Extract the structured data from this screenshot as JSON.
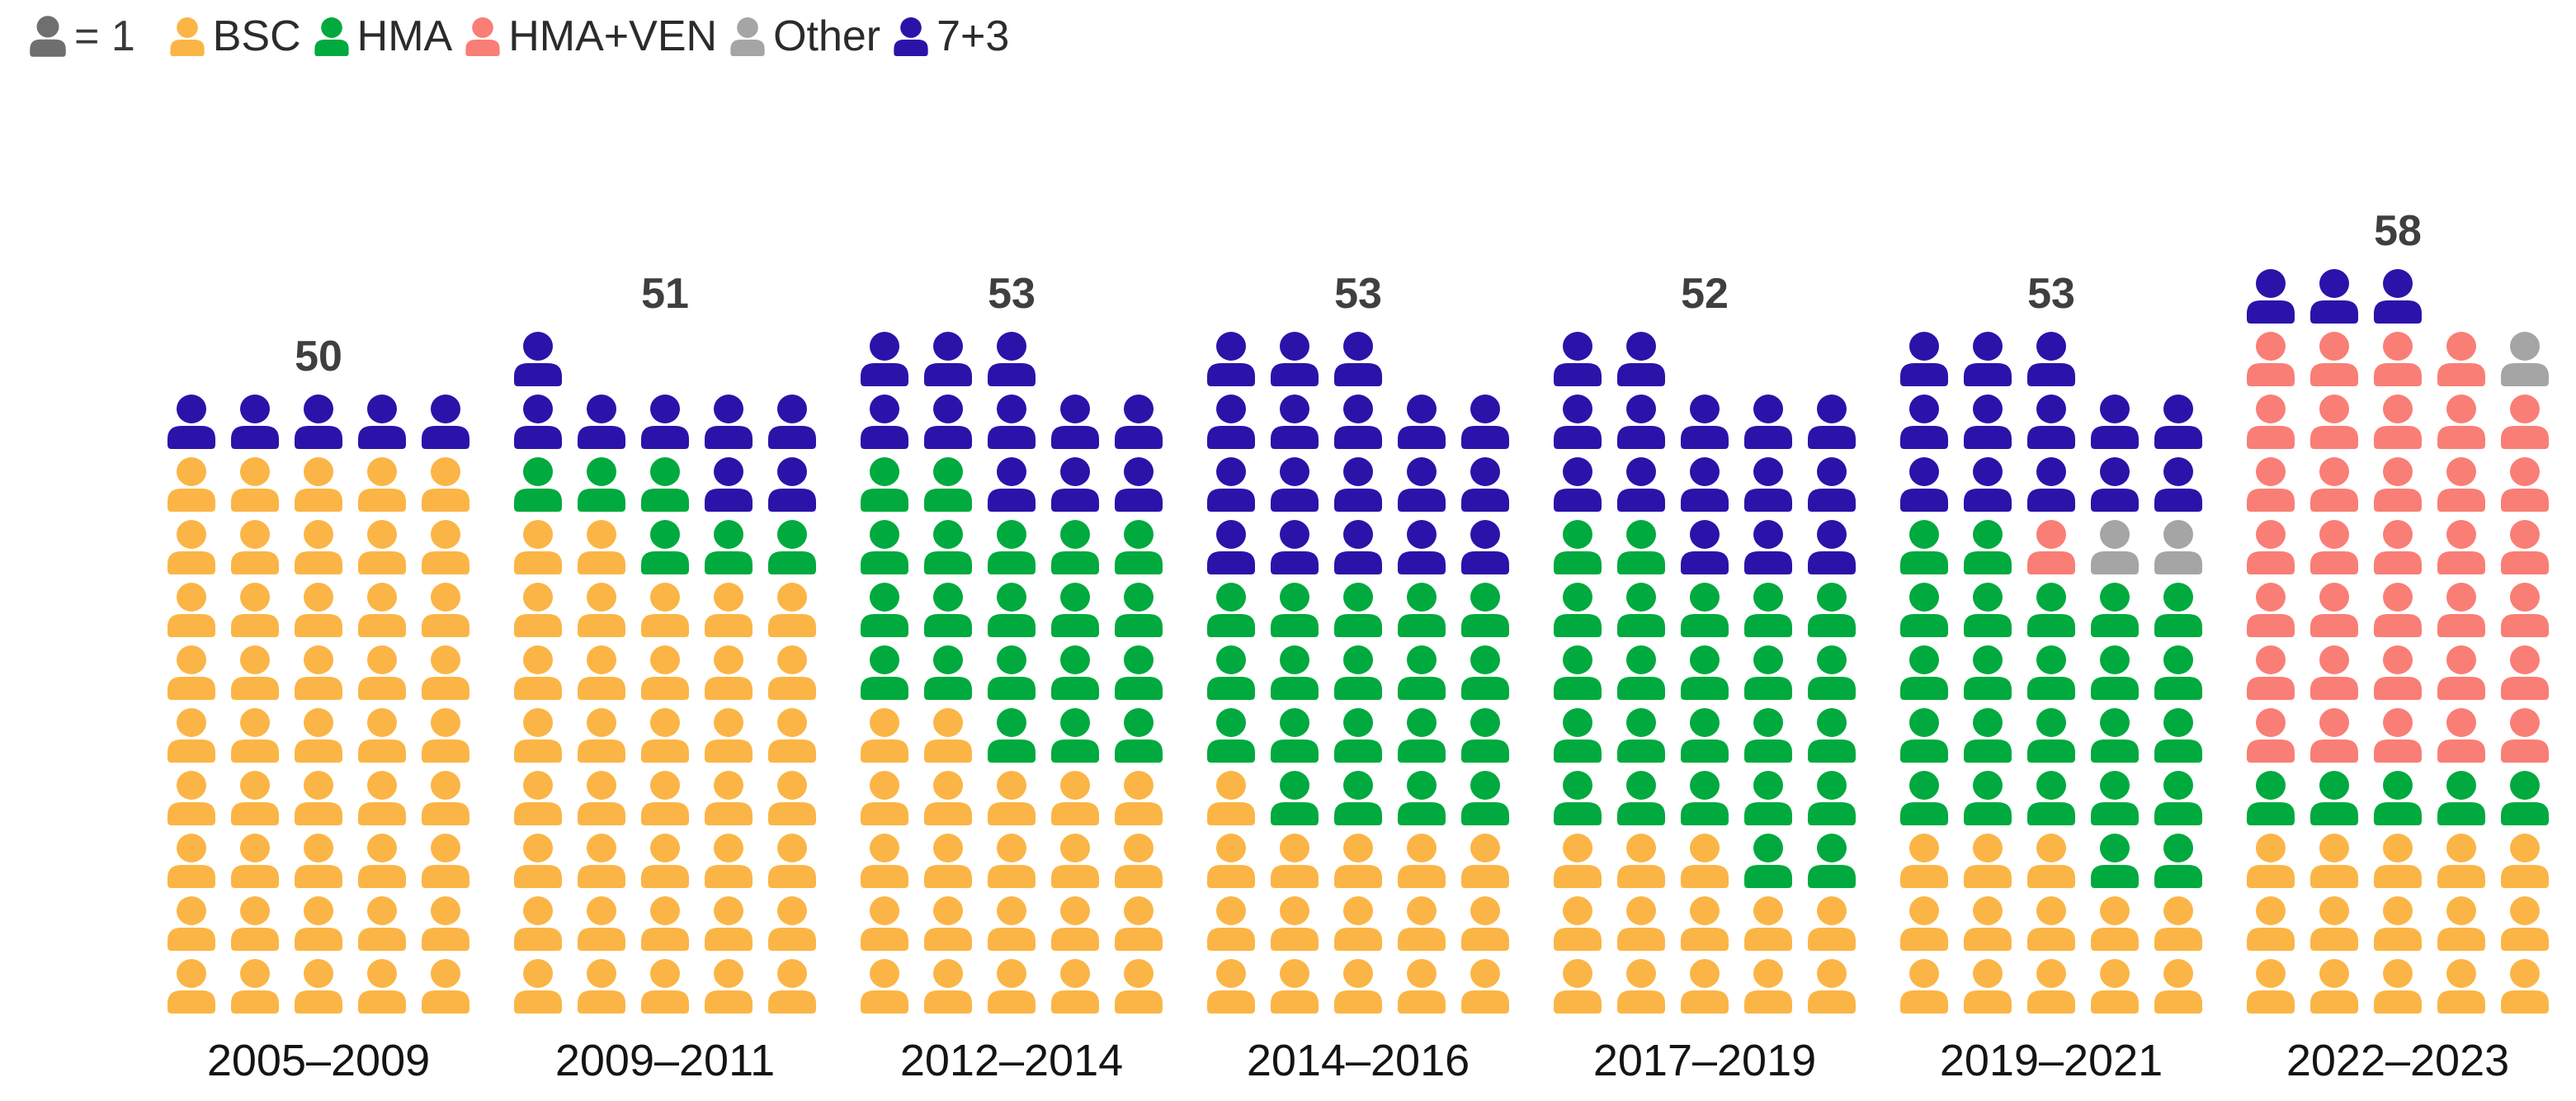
{
  "legend": {
    "unit_label": "= 1",
    "unit_color": "#6F6F6F",
    "items": [
      {
        "label": "BSC",
        "color": "#FBB546"
      },
      {
        "label": "HMA",
        "color": "#00AA3E"
      },
      {
        "label": "HMA+VEN",
        "color": "#F97E76"
      },
      {
        "label": "Other",
        "color": "#A5A5A5"
      },
      {
        "label": "7+3",
        "color": "#2B13A9"
      }
    ]
  },
  "chart_data": {
    "type": "pictogram",
    "unit": 1,
    "columns_per_group": 5,
    "fill_order": [
      "BSC",
      "HMA",
      "HMA+VEN",
      "Other",
      "7+3"
    ],
    "colors": {
      "BSC": "#FBB546",
      "HMA": "#00AA3E",
      "HMA+VEN": "#F97E76",
      "Other": "#A5A5A5",
      "7+3": "#2B13A9"
    },
    "legend_position": "top-left",
    "grid": false,
    "total_label_color": "#3F3F3F",
    "axis_label_color": "#141414",
    "groups": [
      {
        "label": "2005–2009",
        "total": 50,
        "counts": {
          "BSC": 45,
          "HMA": 0,
          "HMA+VEN": 0,
          "Other": 0,
          "7+3": 5
        }
      },
      {
        "label": "2009–2011",
        "total": 51,
        "counts": {
          "BSC": 37,
          "HMA": 6,
          "HMA+VEN": 0,
          "Other": 0,
          "7+3": 8
        }
      },
      {
        "label": "2012–2014",
        "total": 53,
        "counts": {
          "BSC": 22,
          "HMA": 20,
          "HMA+VEN": 0,
          "Other": 0,
          "7+3": 11
        }
      },
      {
        "label": "2014–2016",
        "total": 53,
        "counts": {
          "BSC": 16,
          "HMA": 19,
          "HMA+VEN": 0,
          "Other": 0,
          "7+3": 18
        }
      },
      {
        "label": "2017–2019",
        "total": 52,
        "counts": {
          "BSC": 13,
          "HMA": 24,
          "HMA+VEN": 0,
          "Other": 0,
          "7+3": 15
        }
      },
      {
        "label": "2019–2021",
        "total": 53,
        "counts": {
          "BSC": 13,
          "HMA": 24,
          "HMA+VEN": 1,
          "Other": 2,
          "7+3": 13
        }
      },
      {
        "label": "2022–2023",
        "total": 58,
        "counts": {
          "BSC": 15,
          "HMA": 5,
          "HMA+VEN": 34,
          "Other": 1,
          "7+3": 3
        }
      }
    ]
  }
}
